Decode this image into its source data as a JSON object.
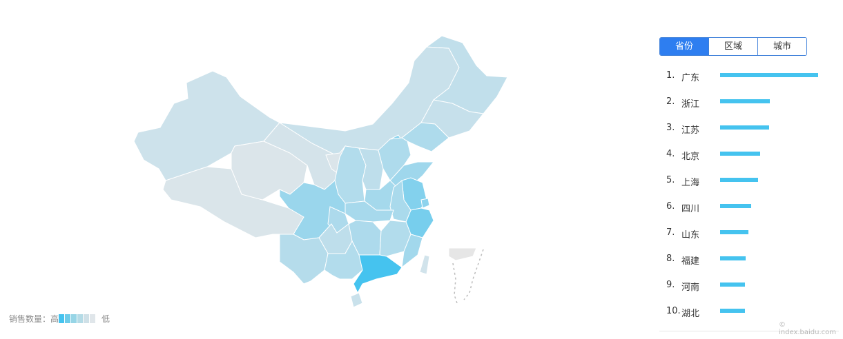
{
  "chart_data": {
    "type": "choropleth-map",
    "scale": {
      "high_color": "#45c3ef",
      "low_color": "#e0e6ea"
    },
    "regions": [
      {
        "name": "新疆",
        "level": 0.12
      },
      {
        "name": "西藏",
        "level": 0.04
      },
      {
        "name": "青海",
        "level": 0.03
      },
      {
        "name": "甘肃",
        "level": 0.08
      },
      {
        "name": "内蒙古",
        "level": 0.15
      },
      {
        "name": "宁夏",
        "level": 0.03
      },
      {
        "name": "陕西",
        "level": 0.3
      },
      {
        "name": "山西",
        "level": 0.22
      },
      {
        "name": "黑龙江",
        "level": 0.2
      },
      {
        "name": "吉林",
        "level": 0.17
      },
      {
        "name": "辽宁",
        "level": 0.32
      },
      {
        "name": "北京",
        "level": 0.55
      },
      {
        "name": "天津",
        "level": 0.25
      },
      {
        "name": "河北",
        "level": 0.32
      },
      {
        "name": "山东",
        "level": 0.42
      },
      {
        "name": "河南",
        "level": 0.38
      },
      {
        "name": "江苏",
        "level": 0.6
      },
      {
        "name": "上海",
        "level": 0.53
      },
      {
        "name": "浙江",
        "level": 0.68
      },
      {
        "name": "安徽",
        "level": 0.35
      },
      {
        "name": "湖北",
        "level": 0.37
      },
      {
        "name": "四川",
        "level": 0.45
      },
      {
        "name": "重庆",
        "level": 0.33
      },
      {
        "name": "湖南",
        "level": 0.33
      },
      {
        "name": "江西",
        "level": 0.3
      },
      {
        "name": "福建",
        "level": 0.4
      },
      {
        "name": "贵州",
        "level": 0.22
      },
      {
        "name": "云南",
        "level": 0.28
      },
      {
        "name": "广西",
        "level": 0.3
      },
      {
        "name": "广东",
        "level": 1.0
      },
      {
        "name": "海南",
        "level": 0.15
      },
      {
        "name": "台湾",
        "level": 0.1
      }
    ],
    "ranking": [
      {
        "rank": "1.",
        "name": "广东",
        "value": 1.0
      },
      {
        "rank": "2.",
        "name": "浙江",
        "value": 0.51
      },
      {
        "rank": "3.",
        "name": "江苏",
        "value": 0.5
      },
      {
        "rank": "4.",
        "name": "北京",
        "value": 0.41
      },
      {
        "rank": "5.",
        "name": "上海",
        "value": 0.39
      },
      {
        "rank": "6.",
        "name": "四川",
        "value": 0.32
      },
      {
        "rank": "7.",
        "name": "山东",
        "value": 0.29
      },
      {
        "rank": "8.",
        "name": "福建",
        "value": 0.26
      },
      {
        "rank": "9.",
        "name": "河南",
        "value": 0.25
      },
      {
        "rank": "10.",
        "name": "湖北",
        "value": 0.25
      }
    ],
    "legend": {
      "label": "销售数量：高",
      "low_label": "低",
      "swatches": [
        "#45c3ef",
        "#6ecce9",
        "#97d5e6",
        "#b5dbe6",
        "#cfe0e7",
        "#e0e6ea"
      ]
    }
  },
  "tabs": [
    {
      "label": "省份",
      "active": true
    },
    {
      "label": "区域",
      "active": false
    },
    {
      "label": "城市",
      "active": false
    }
  ],
  "credit": "© index.baidu.com"
}
